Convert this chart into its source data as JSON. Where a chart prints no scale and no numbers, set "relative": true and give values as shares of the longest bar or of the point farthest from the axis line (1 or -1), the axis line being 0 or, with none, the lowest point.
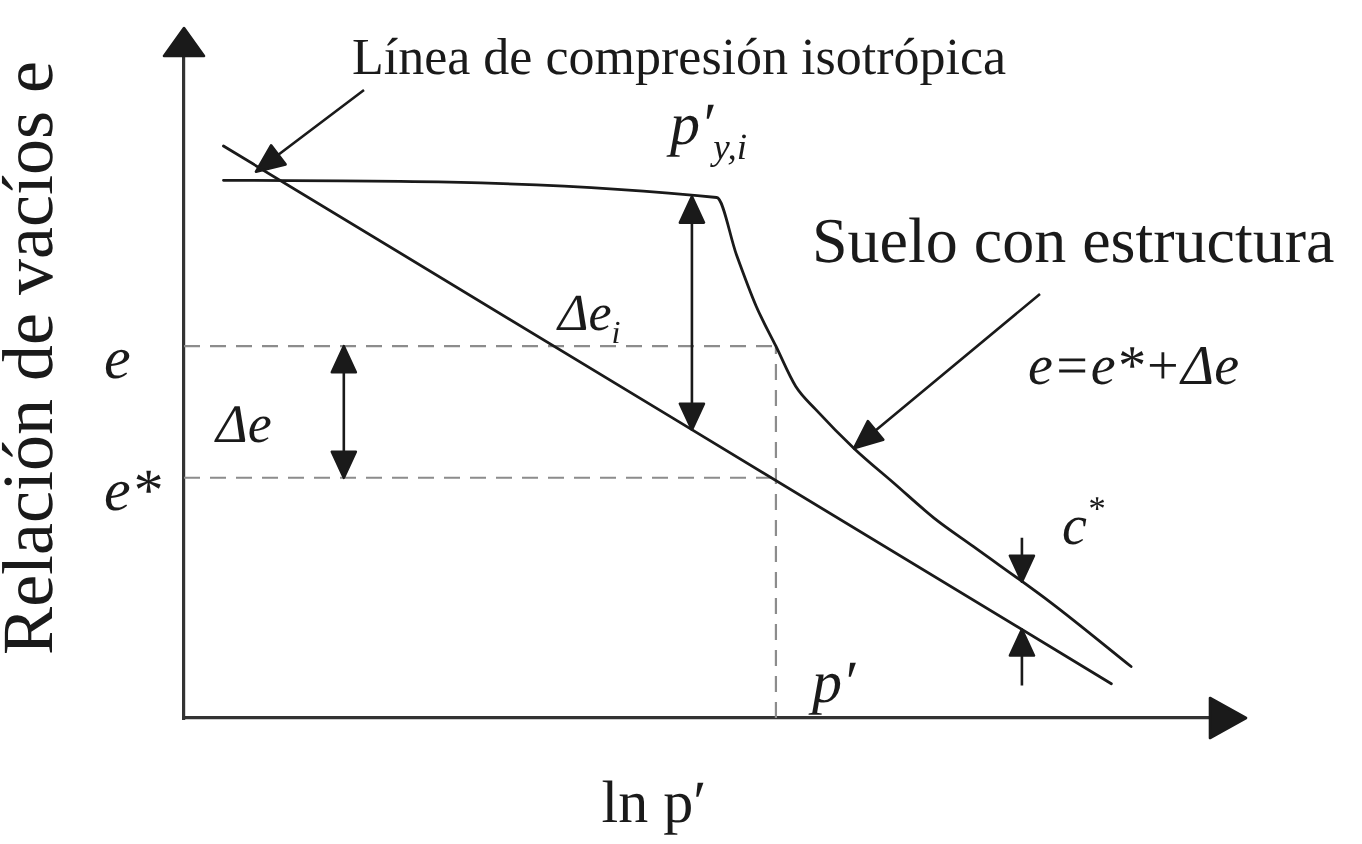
{
  "chart_data": {
    "type": "line",
    "relative": true,
    "xlabel": "ln p′",
    "ylabel": "Relación de vacíos e",
    "categories": [
      null,
      null,
      null,
      null,
      null,
      null,
      null,
      null,
      null,
      null,
      null,
      null,
      null,
      null,
      null,
      null,
      null,
      null,
      null,
      null,
      null,
      null,
      null,
      null,
      null,
      null,
      null,
      null,
      null,
      null,
      null,
      null,
      null,
      null,
      null,
      null,
      null,
      null,
      null,
      null,
      null,
      null,
      null,
      null,
      null,
      null,
      null,
      null,
      null,
      null,
      null,
      null,
      null
    ],
    "series": [
      {
        "name": "Línea de compresión isotrópica",
        "color": "#1a1a1a",
        "values": [
          null,
          null,
          1,
          null,
          null,
          null,
          null,
          null,
          null,
          null,
          null,
          null,
          null,
          null,
          null,
          null,
          null,
          null,
          null,
          null,
          null,
          null,
          null,
          null,
          null,
          null,
          null,
          null,
          null,
          null,
          null,
          null,
          null,
          null,
          null,
          null,
          null,
          null,
          null,
          null,
          null,
          null,
          null,
          null,
          null,
          null,
          null,
          0.06,
          null,
          null,
          null,
          null,
          null
        ]
      },
      {
        "name": "Suelo con estructura",
        "color": "#1a1a1a",
        "values": [
          null,
          null,
          0.94,
          null,
          null,
          null,
          null,
          null,
          null,
          null,
          null,
          null,
          null,
          null,
          null,
          null,
          null,
          null,
          null,
          null,
          null,
          null,
          null,
          null,
          null,
          null,
          null,
          0.91,
          0.81,
          0.72,
          0.65,
          0.58,
          0.54,
          null,
          0.47,
          null,
          0.41,
          null,
          0.35,
          null,
          0.3,
          null,
          null,
          null,
          0.2,
          null,
          null,
          null,
          0.09,
          null,
          null,
          null,
          null
        ]
      }
    ],
    "ref_lines": [
      {
        "axis": "y",
        "value": 0.65,
        "label": "e",
        "color": "#8c8c8c",
        "line_style": "dashed"
      },
      {
        "axis": "y",
        "value": 0.42,
        "label": "e*",
        "color": "#8c8c8c",
        "line_style": "dashed"
      }
    ],
    "annotations": [
      "p′$_{y,i}$",
      "Δe$_{i}$",
      "Δe",
      "e=e*+Δe",
      "c$^{*}$",
      "p′"
    ],
    "marker": "none",
    "line_style": "solid"
  }
}
